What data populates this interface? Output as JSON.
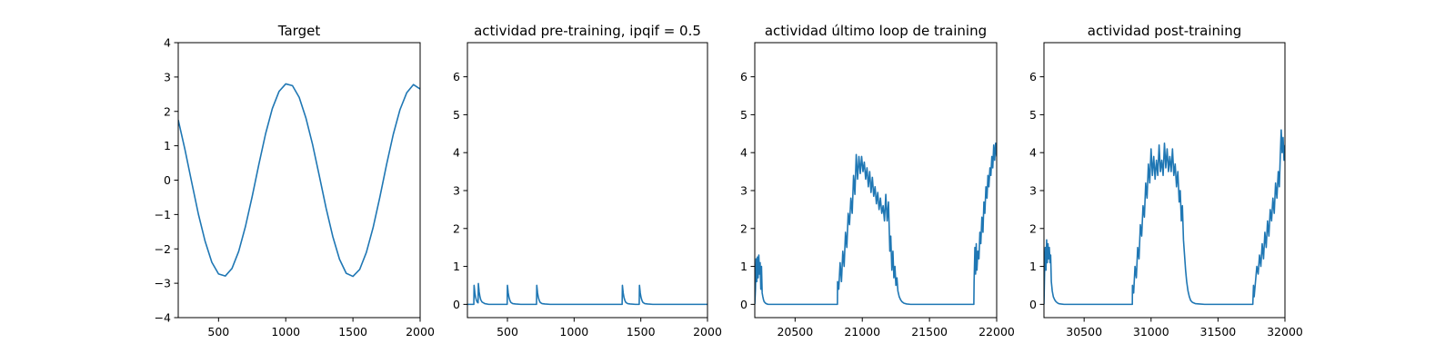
{
  "colors": {
    "line": "#1f77b4",
    "axes": "#000000",
    "background": "#ffffff"
  },
  "chart_data": [
    {
      "type": "line",
      "title": "Target",
      "xlabel": "",
      "ylabel": "",
      "xlim": [
        200,
        2000
      ],
      "ylim": [
        -4,
        4
      ],
      "xticks": [
        500,
        1000,
        1500,
        2000
      ],
      "xtick_labels": [
        "500",
        "1000",
        "1500",
        "2000"
      ],
      "yticks": [
        -4,
        -3,
        -2,
        -1,
        0,
        1,
        2,
        3,
        4
      ],
      "ytick_labels": [
        "−4",
        "−3",
        "−2",
        "−1",
        "0",
        "1",
        "2",
        "3",
        "4"
      ],
      "grid": false,
      "series": [
        {
          "x": [
            200,
            250,
            300,
            350,
            400,
            450,
            500,
            550,
            600,
            650,
            700,
            750,
            800,
            850,
            900,
            950,
            1000,
            1050,
            1100,
            1150,
            1200,
            1250,
            1300,
            1350,
            1400,
            1450,
            1500,
            1550,
            1600,
            1650,
            1700,
            1750,
            1800,
            1850,
            1900,
            1950,
            2000
          ],
          "y": [
            1.75,
            0.89,
            -0.06,
            -0.99,
            -1.78,
            -2.39,
            -2.73,
            -2.79,
            -2.57,
            -2.07,
            -1.35,
            -0.48,
            0.46,
            1.35,
            2.08,
            2.58,
            2.8,
            2.75,
            2.41,
            1.81,
            1.03,
            0.12,
            -0.81,
            -1.64,
            -2.3,
            -2.71,
            -2.8,
            -2.6,
            -2.1,
            -1.38,
            -0.5,
            0.45,
            1.33,
            2.05,
            2.54,
            2.78,
            2.65
          ]
        }
      ]
    },
    {
      "type": "line",
      "title": "actividad pre-training, ipqif = 0.5",
      "xlabel": "",
      "ylabel": "",
      "xlim": [
        200,
        2000
      ],
      "ylim": [
        -0.35,
        6.9
      ],
      "xticks": [
        500,
        1000,
        1500,
        2000
      ],
      "xtick_labels": [
        "500",
        "1000",
        "1500",
        "2000"
      ],
      "yticks": [
        0,
        1,
        2,
        3,
        4,
        5,
        6
      ],
      "ytick_labels": [
        "0",
        "1",
        "2",
        "3",
        "4",
        "5",
        "6"
      ],
      "grid": false,
      "series": [
        {
          "x": [
            200,
            248,
            250,
            256,
            262,
            268,
            274,
            280,
            282,
            288,
            294,
            300,
            310,
            330,
            360,
            400,
            498,
            500,
            506,
            512,
            518,
            524,
            530,
            540,
            560,
            600,
            650,
            718,
            720,
            726,
            732,
            738,
            744,
            750,
            760,
            780,
            820,
            900,
            1000,
            1100,
            1200,
            1300,
            1360,
            1362,
            1368,
            1374,
            1380,
            1386,
            1392,
            1402,
            1420,
            1460,
            1488,
            1490,
            1496,
            1502,
            1508,
            1514,
            1520,
            1530,
            1550,
            1590,
            1700,
            1800,
            1900,
            2000
          ],
          "y": [
            0,
            0,
            0.5,
            0.3,
            0.18,
            0.1,
            0.06,
            0.04,
            0.55,
            0.33,
            0.2,
            0.12,
            0.06,
            0.02,
            0,
            0,
            0,
            0.5,
            0.3,
            0.18,
            0.11,
            0.06,
            0.04,
            0.02,
            0.01,
            0,
            0,
            0,
            0.5,
            0.3,
            0.18,
            0.11,
            0.06,
            0.04,
            0.02,
            0.01,
            0,
            0,
            0,
            0,
            0,
            0,
            0,
            0.5,
            0.3,
            0.18,
            0.11,
            0.06,
            0.04,
            0.02,
            0.01,
            0,
            0,
            0.5,
            0.3,
            0.18,
            0.11,
            0.06,
            0.04,
            0.02,
            0.01,
            0,
            0,
            0,
            0,
            0
          ]
        }
      ]
    },
    {
      "type": "line",
      "title": "actividad último loop de training",
      "xlabel": "",
      "ylabel": "",
      "xlim": [
        20200,
        22000
      ],
      "ylim": [
        -0.35,
        6.9
      ],
      "xticks": [
        20500,
        21000,
        21500,
        22000
      ],
      "xtick_labels": [
        "20500",
        "21000",
        "21500",
        "22000"
      ],
      "yticks": [
        0,
        1,
        2,
        3,
        4,
        5,
        6
      ],
      "ytick_labels": [
        "0",
        "1",
        "2",
        "3",
        "4",
        "5",
        "6"
      ],
      "grid": false,
      "series": [
        {
          "x": [
            20200,
            20205,
            20210,
            20215,
            20220,
            20225,
            20230,
            20235,
            20240,
            20245,
            20250,
            20255,
            20260,
            20265,
            20270,
            20280,
            20290,
            20300,
            20320,
            20350,
            20400,
            20500,
            20600,
            20700,
            20815,
            20816,
            20825,
            20835,
            20845,
            20855,
            20865,
            20875,
            20885,
            20895,
            20905,
            20915,
            20925,
            20935,
            20945,
            20955,
            20965,
            20975,
            20985,
            20995,
            21005,
            21015,
            21025,
            21035,
            21045,
            21055,
            21065,
            21075,
            21085,
            21095,
            21105,
            21115,
            21125,
            21135,
            21145,
            21155,
            21165,
            21175,
            21185,
            21195,
            21205,
            21212,
            21220,
            21228,
            21235,
            21243,
            21250,
            21258,
            21265,
            21275,
            21285,
            21295,
            21310,
            21330,
            21360,
            21400,
            21500,
            21600,
            21700,
            21790,
            21830,
            21832,
            21838,
            21843,
            21848,
            21853,
            21860,
            21868,
            21875,
            21882,
            21890,
            21898,
            21905,
            21912,
            21920,
            21928,
            21935,
            21942,
            21950,
            21957,
            21964,
            21971,
            21978,
            21985,
            21992,
            22000
          ],
          "y": [
            0,
            0.4,
            1.2,
            0.6,
            1.25,
            0.7,
            1.3,
            0.8,
            1.1,
            0.4,
            1.0,
            0.3,
            0.2,
            0.12,
            0.07,
            0.03,
            0.01,
            0,
            0,
            0,
            0,
            0,
            0,
            0,
            0,
            0.6,
            0.4,
            1.1,
            0.6,
            1.4,
            1.0,
            1.9,
            1.5,
            2.4,
            2.1,
            2.8,
            2.4,
            3.4,
            2.9,
            3.95,
            3.3,
            3.9,
            3.45,
            3.9,
            3.5,
            3.75,
            3.3,
            3.6,
            3.1,
            3.5,
            2.95,
            3.35,
            2.85,
            3.1,
            2.65,
            2.95,
            2.5,
            2.8,
            2.4,
            2.6,
            2.2,
            2.9,
            2.2,
            2.7,
            1.4,
            1.8,
            0.9,
            1.4,
            0.7,
            1.0,
            0.5,
            0.7,
            0.35,
            0.2,
            0.12,
            0.07,
            0.03,
            0.01,
            0,
            0,
            0,
            0,
            0,
            0,
            0,
            0.6,
            1.5,
            0.8,
            1.6,
            0.9,
            1.4,
            1.2,
            1.9,
            1.6,
            2.3,
            1.9,
            2.7,
            2.4,
            3.1,
            2.8,
            3.4,
            3.1,
            3.6,
            3.4,
            3.9,
            3.6,
            4.2,
            3.8,
            4.25,
            3.9
          ]
        }
      ]
    },
    {
      "type": "line",
      "title": "actividad post-training",
      "xlabel": "",
      "ylabel": "",
      "xlim": [
        30200,
        32000
      ],
      "ylim": [
        -0.35,
        6.9
      ],
      "xticks": [
        30500,
        31000,
        31500,
        32000
      ],
      "xtick_labels": [
        "30500",
        "31000",
        "31500",
        "32000"
      ],
      "yticks": [
        0,
        1,
        2,
        3,
        4,
        5,
        6
      ],
      "ytick_labels": [
        "0",
        "1",
        "2",
        "3",
        "4",
        "5",
        "6"
      ],
      "grid": false,
      "series": [
        {
          "x": [
            30200,
            30205,
            30210,
            30215,
            30220,
            30225,
            30230,
            30235,
            30240,
            30245,
            30250,
            30255,
            30262,
            30270,
            30280,
            30290,
            30300,
            30310,
            30325,
            30350,
            30400,
            30500,
            30600,
            30700,
            30800,
            30860,
            30861,
            30870,
            30880,
            30890,
            30900,
            30910,
            30920,
            30930,
            30940,
            30950,
            30960,
            30970,
            30980,
            30990,
            31000,
            31010,
            31020,
            31030,
            31040,
            31050,
            31060,
            31070,
            31080,
            31090,
            31100,
            31110,
            31120,
            31130,
            31140,
            31150,
            31160,
            31170,
            31180,
            31190,
            31200,
            31210,
            31218,
            31226,
            31234,
            31242,
            31250,
            31258,
            31266,
            31276,
            31286,
            31296,
            31310,
            31330,
            31360,
            31400,
            31500,
            31600,
            31700,
            31760,
            31765,
            31770,
            31780,
            31790,
            31800,
            31810,
            31820,
            31830,
            31840,
            31850,
            31860,
            31870,
            31880,
            31890,
            31900,
            31910,
            31920,
            31930,
            31940,
            31950,
            31958,
            31965,
            31972,
            31979,
            31986,
            31993,
            32000
          ],
          "y": [
            0,
            0.9,
            1.5,
            0.9,
            1.7,
            1.1,
            1.6,
            1.2,
            1.5,
            1.1,
            1.3,
            0.6,
            0.35,
            0.2,
            0.12,
            0.07,
            0.04,
            0.02,
            0.01,
            0,
            0,
            0,
            0,
            0,
            0,
            0,
            0.5,
            0.3,
            1.0,
            0.7,
            1.5,
            1.2,
            2.1,
            1.8,
            2.6,
            2.3,
            3.2,
            2.8,
            3.7,
            3.2,
            4.1,
            3.4,
            3.9,
            3.3,
            3.8,
            3.4,
            4.2,
            3.5,
            3.8,
            3.4,
            4.25,
            3.6,
            4.1,
            3.5,
            3.9,
            3.5,
            4.1,
            3.4,
            3.7,
            3.1,
            3.5,
            2.7,
            3.0,
            2.2,
            2.6,
            1.7,
            1.3,
            0.9,
            0.6,
            0.35,
            0.2,
            0.1,
            0.05,
            0.02,
            0.01,
            0,
            0,
            0,
            0,
            0,
            0.5,
            0.2,
            0.6,
            1.0,
            0.8,
            1.3,
            1.0,
            1.6,
            1.2,
            1.9,
            1.5,
            2.2,
            1.8,
            2.5,
            2.2,
            2.8,
            2.4,
            3.2,
            2.8,
            3.5,
            3.1,
            3.9,
            4.6,
            4.0,
            4.4,
            3.8,
            4.2
          ]
        }
      ]
    }
  ]
}
